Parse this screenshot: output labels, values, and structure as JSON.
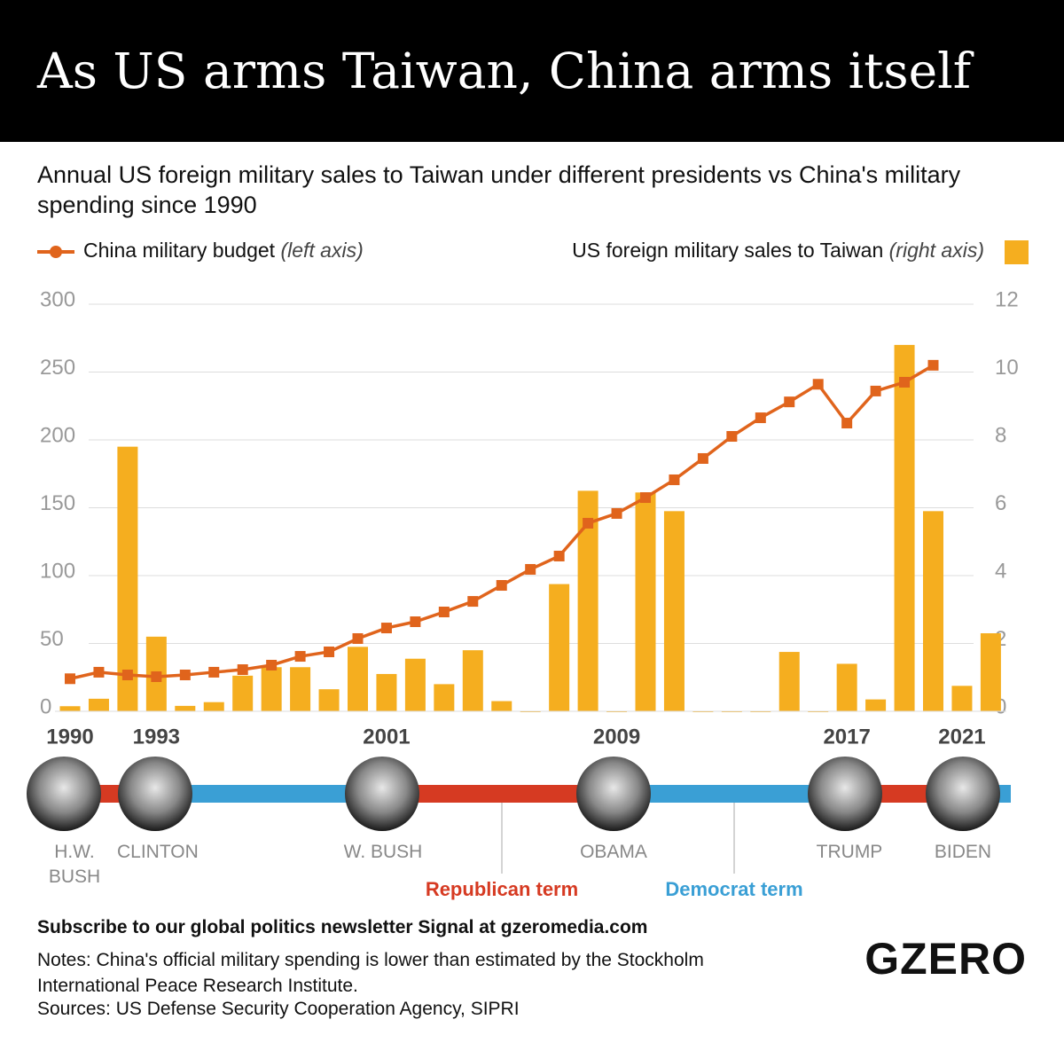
{
  "chart_data": {
    "type": "bar_line",
    "title": "As US arms Taiwan, China arms itself",
    "subtitle": "Annual US foreign military sales to Taiwan under different presidents vs China's military spending since 1990",
    "categories": [
      "1990",
      null,
      null,
      "1993",
      null,
      null,
      null,
      null,
      null,
      null,
      null,
      "2001",
      null,
      null,
      null,
      null,
      null,
      null,
      null,
      "2009",
      null,
      null,
      null,
      null,
      null,
      null,
      null,
      "2017",
      null,
      null,
      null,
      "2021",
      null
    ],
    "series": [
      {
        "name": "China military budget",
        "axis_label": "(left axis)",
        "type": "line",
        "axis": "y",
        "color": "#e0641c",
        "values": [
          24,
          28.8,
          26.8,
          25.5,
          26.8,
          28.8,
          30.7,
          34,
          40.5,
          43.8,
          53.6,
          61.4,
          66,
          73.2,
          81,
          92.8,
          104.6,
          114.4,
          138.6,
          145.8,
          157.5,
          170.6,
          186.3,
          202.6,
          216.3,
          228,
          241,
          212.4,
          236,
          242.5,
          255,
          null,
          null
        ]
      },
      {
        "name": "US foreign military sales to Taiwan",
        "axis_label": "(right axis)",
        "type": "bar",
        "axis": "y2",
        "color": "#f5ae1f",
        "values": [
          0.15,
          0.37,
          7.8,
          2.2,
          0.16,
          0.27,
          1.05,
          1.3,
          1.3,
          0.65,
          1.9,
          1.1,
          1.55,
          0.8,
          1.8,
          0.3,
          0,
          3.75,
          6.5,
          0,
          6.45,
          5.9,
          0,
          0,
          0,
          1.75,
          0,
          1.4,
          0.35,
          10.8,
          5.9,
          0.75,
          2.3
        ]
      }
    ],
    "ylim": [
      0,
      300
    ],
    "yticks": [
      0,
      50,
      100,
      150,
      200,
      250,
      300
    ],
    "y2lim": [
      0,
      12
    ],
    "y2ticks": [
      0,
      2,
      4,
      6,
      8,
      10,
      12
    ],
    "grid": true,
    "presidents": [
      "H.W. BUSH",
      "CLINTON",
      "W. BUSH",
      "OBAMA",
      "TRUMP",
      "BIDEN"
    ],
    "term_legend": [
      {
        "name": "Republican term",
        "color": "#d63a22"
      },
      {
        "name": "Democrat term",
        "color": "#3a9fd5"
      }
    ]
  },
  "footer": {
    "subscribe": "Subscribe to our global politics newsletter Signal at gzeromedia.com",
    "notes": "Notes: China's official military spending is lower than estimated by the Stockholm International Peace Research Institute.",
    "sources": "Sources: US Defense Security Cooperation Agency, SIPRI",
    "logo": "GZERO"
  }
}
